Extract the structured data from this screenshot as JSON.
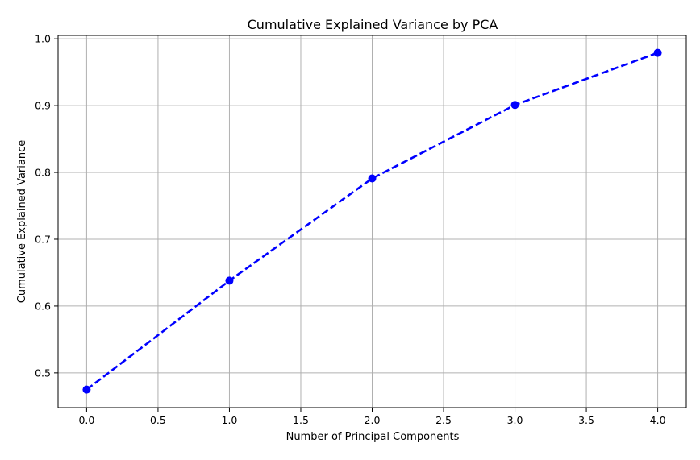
{
  "chart_data": {
    "type": "line",
    "title": "Cumulative Explained Variance by PCA",
    "xlabel": "Number of Principal Components",
    "ylabel": "Cumulative Explained Variance",
    "x": [
      0,
      1,
      2,
      3,
      4
    ],
    "series": [
      {
        "values": [
          0.475,
          0.638,
          0.791,
          0.901,
          0.979
        ],
        "color": "#0000ff",
        "line_style": "dashed",
        "marker": "circle"
      }
    ],
    "xlim": [
      -0.2,
      4.2
    ],
    "ylim": [
      0.448,
      1.005
    ],
    "xticks": [
      0.0,
      0.5,
      1.0,
      1.5,
      2.0,
      2.5,
      3.0,
      3.5,
      4.0
    ],
    "xtick_labels": [
      "0.0",
      "0.5",
      "1.0",
      "1.5",
      "2.0",
      "2.5",
      "3.0",
      "3.5",
      "4.0"
    ],
    "yticks": [
      0.5,
      0.6,
      0.7,
      0.8,
      0.9,
      1.0
    ],
    "ytick_labels": [
      "0.5",
      "0.6",
      "0.7",
      "0.8",
      "0.9",
      "1.0"
    ],
    "grid": true
  }
}
